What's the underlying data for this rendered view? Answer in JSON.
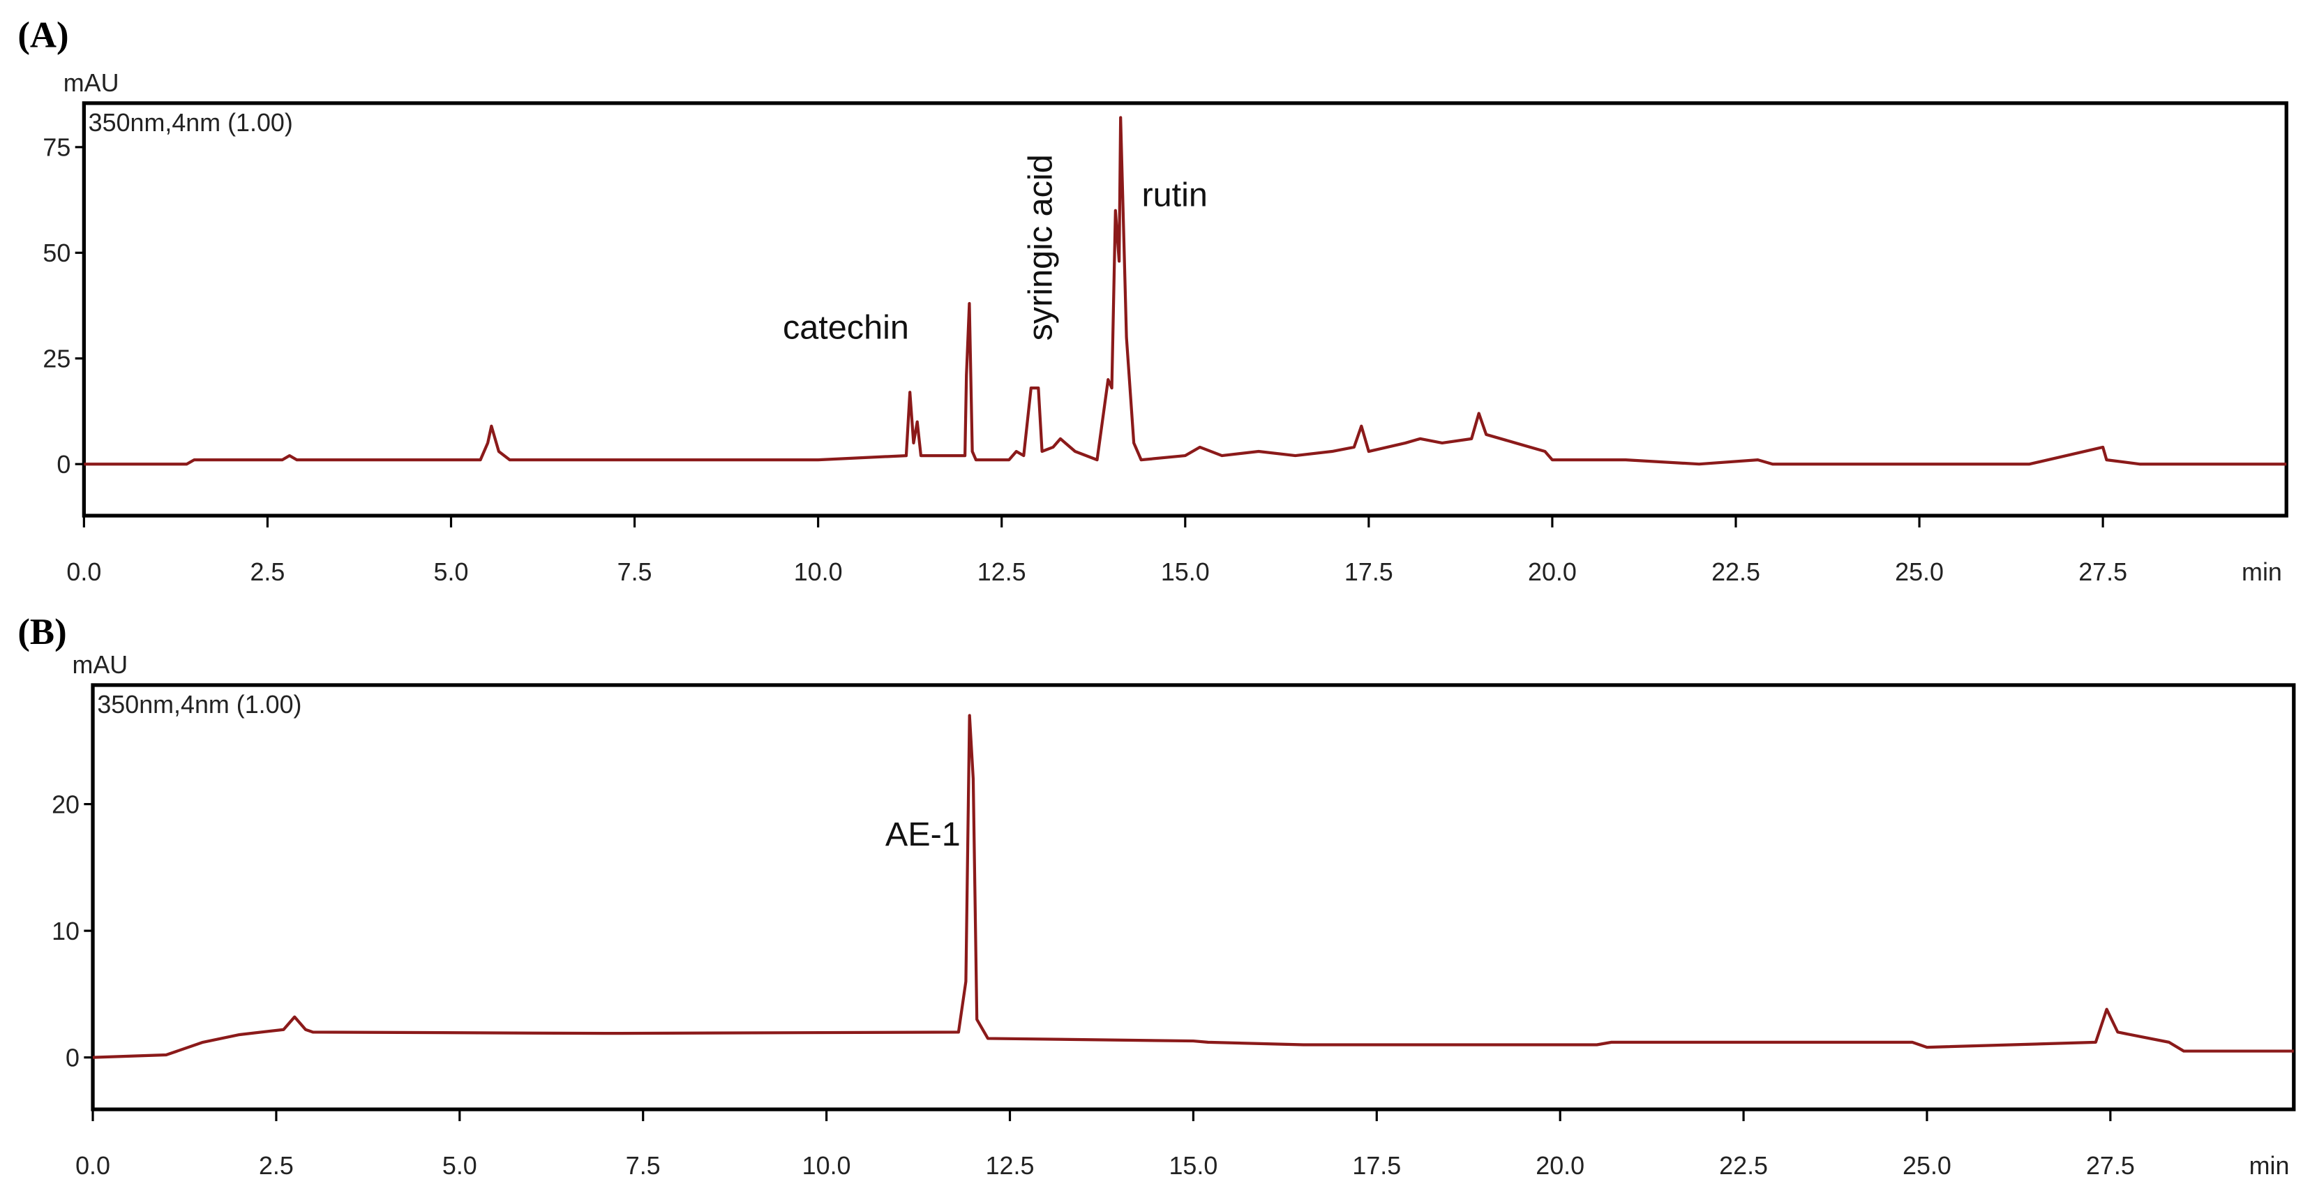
{
  "chart_data": [
    {
      "type": "line",
      "panel_label": "(A)",
      "y_label": "mAU",
      "x_label": "min",
      "x": [
        0,
        1.4,
        1.5,
        2.7,
        2.8,
        2.9,
        5.4,
        5.5,
        5.55,
        5.65,
        5.8,
        10.0,
        11.2,
        11.25,
        11.3,
        11.35,
        11.4,
        12.0,
        12.02,
        12.06,
        12.1,
        12.15,
        12.6,
        12.7,
        12.8,
        12.9,
        13.0,
        13.05,
        13.2,
        13.3,
        13.5,
        13.8,
        13.95,
        14.0,
        14.05,
        14.1,
        14.12,
        14.2,
        14.3,
        14.4,
        15.0,
        15.2,
        15.5,
        16.0,
        16.5,
        17.0,
        17.3,
        17.4,
        17.5,
        18.0,
        18.2,
        18.5,
        18.9,
        19.0,
        19.1,
        19.5,
        19.9,
        20.0,
        21.0,
        22.0,
        22.8,
        23.0,
        25.0,
        26.5,
        27.5,
        27.55,
        28.0,
        30.0
      ],
      "series": [
        {
          "name": "350nm,4nm (1.00)",
          "color": "#8b1a1a",
          "values": [
            0,
            0,
            1,
            1,
            2,
            1,
            1,
            5,
            9,
            3,
            1,
            1,
            2,
            17,
            5,
            10,
            2,
            2,
            21,
            38,
            3,
            1,
            1,
            3,
            2,
            18,
            18,
            3,
            4,
            6,
            3,
            1,
            20,
            18,
            60,
            48,
            82,
            30,
            5,
            1,
            2,
            4,
            2,
            3,
            2,
            3,
            4,
            9,
            3,
            5,
            6,
            5,
            6,
            12,
            7,
            5,
            3,
            1,
            1,
            0,
            1,
            0,
            0,
            0,
            4,
            1,
            0,
            0
          ]
        }
      ],
      "annotations": [
        "catechin",
        "syringic acid",
        "rutin"
      ],
      "xlim": [
        0,
        30
      ],
      "ylim": [
        -12.2,
        85.4
      ],
      "xticks": [
        {
          "value": 0,
          "label": "0.0"
        },
        2.5,
        {
          "value": 5,
          "label": "5.0"
        },
        7.5,
        {
          "value": 10,
          "label": "10.0"
        },
        12.5,
        {
          "value": 15,
          "label": "15.0"
        },
        17.5,
        {
          "value": 20,
          "label": "20.0"
        },
        22.5,
        {
          "value": 25,
          "label": "25.0"
        },
        27.5
      ],
      "yticks": [
        0,
        25,
        50,
        75
      ]
    },
    {
      "type": "line",
      "panel_label": "(B)",
      "y_label": "mAU",
      "x_label": "min",
      "x": [
        0,
        1,
        1.5,
        2.0,
        2.6,
        2.75,
        2.9,
        3.0,
        7.0,
        11.8,
        11.9,
        11.95,
        12.0,
        12.05,
        12.2,
        15.0,
        15.2,
        16.5,
        17.0,
        20.5,
        20.7,
        24.8,
        25.0,
        27.3,
        27.45,
        27.6,
        28.3,
        28.5,
        30.0
      ],
      "series": [
        {
          "name": "350nm,4nm (1.00)",
          "color": "#8b1a1a",
          "values": [
            0,
            0.2,
            1.2,
            1.8,
            2.2,
            3.2,
            2.2,
            2.0,
            1.9,
            2.0,
            6,
            27,
            22,
            3,
            1.5,
            1.3,
            1.2,
            1.0,
            1.0,
            1.0,
            1.2,
            1.2,
            0.8,
            1.2,
            3.8,
            2,
            1.2,
            0.5,
            0.5
          ]
        }
      ],
      "annotations": [
        "AE-1"
      ],
      "xlim": [
        0,
        30
      ],
      "ylim": [
        -4.1,
        29.4
      ],
      "xticks": [
        {
          "value": 0,
          "label": "0.0"
        },
        2.5,
        {
          "value": 5,
          "label": "5.0"
        },
        7.5,
        {
          "value": 10,
          "label": "10.0"
        },
        12.5,
        {
          "value": 15,
          "label": "15.0"
        },
        17.5,
        {
          "value": 20,
          "label": "20.0"
        },
        22.5,
        {
          "value": 25,
          "label": "25.0"
        },
        27.5
      ],
      "yticks": [
        0,
        10,
        20
      ]
    }
  ]
}
